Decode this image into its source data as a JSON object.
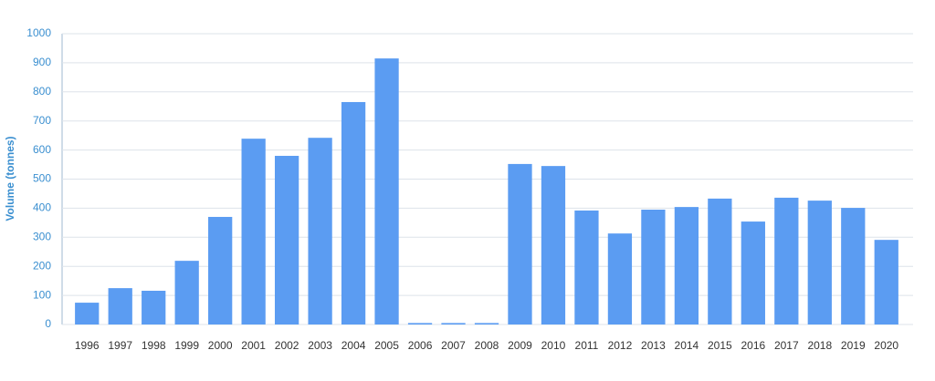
{
  "chart_data": {
    "type": "bar",
    "y_label": "Volume (tonnes)",
    "categories": [
      "1996",
      "1997",
      "1998",
      "1999",
      "2000",
      "2001",
      "2002",
      "2003",
      "2004",
      "2005",
      "2006",
      "2007",
      "2008",
      "2009",
      "2010",
      "2011",
      "2012",
      "2013",
      "2014",
      "2015",
      "2016",
      "2017",
      "2018",
      "2019",
      "2020"
    ],
    "values": [
      75,
      125,
      116,
      219,
      370,
      639,
      580,
      642,
      765,
      915,
      5,
      5,
      5,
      552,
      545,
      392,
      313,
      395,
      404,
      433,
      354,
      436,
      426,
      401,
      291
    ],
    "color": "#5b9cf2",
    "ylim": [
      0,
      1000
    ],
    "yticks": [
      0,
      100,
      200,
      300,
      400,
      500,
      600,
      700,
      800,
      900,
      1000
    ],
    "grid": true
  }
}
